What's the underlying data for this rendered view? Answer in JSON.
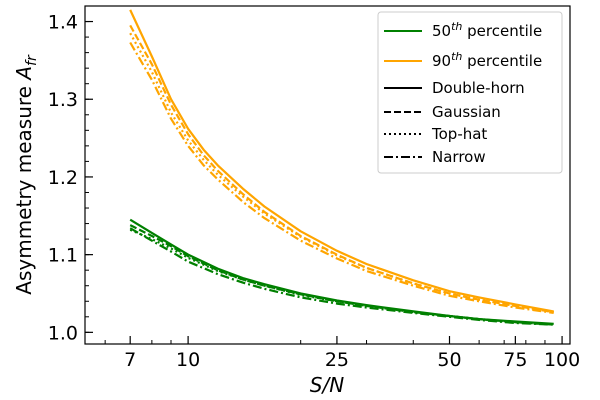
{
  "chart_data": {
    "type": "line",
    "xlabel": "S/N",
    "ylabel": "Asymmetry measure A_fr",
    "xscale": "log",
    "xlim": [
      5.3,
      105
    ],
    "ylim": [
      0.985,
      1.42
    ],
    "xticks": [
      {
        "value": 7,
        "label": "7"
      },
      {
        "value": 10,
        "label": "10"
      },
      {
        "value": 25,
        "label": "25"
      },
      {
        "value": 50,
        "label": "50"
      },
      {
        "value": 75,
        "label": "75"
      },
      {
        "value": 100,
        "label": "100"
      }
    ],
    "yticks": [
      {
        "value": 1.0,
        "label": "1.0"
      },
      {
        "value": 1.1,
        "label": "1.1"
      },
      {
        "value": 1.2,
        "label": "1.2"
      },
      {
        "value": 1.3,
        "label": "1.3"
      },
      {
        "value": 1.4,
        "label": "1.4"
      }
    ],
    "grid": false,
    "legend_position": "top-right",
    "legend": [
      {
        "label": "50th percentile",
        "base": "50",
        "sup": "th",
        "rest": " percentile",
        "kind": "color",
        "color": "#008000"
      },
      {
        "label": "90th percentile",
        "base": "90",
        "sup": "th",
        "rest": " percentile",
        "kind": "color",
        "color": "#ffa500"
      },
      {
        "label": "Double-horn",
        "kind": "style",
        "dash": "solid"
      },
      {
        "label": "Gaussian",
        "kind": "style",
        "dash": "dashed"
      },
      {
        "label": "Top-hat",
        "kind": "style",
        "dash": "dotted"
      },
      {
        "label": "Narrow",
        "kind": "style",
        "dash": "dashdot"
      }
    ],
    "series": [
      {
        "percentile": "90",
        "profile": "Double-horn",
        "color": "#ffa500",
        "dash": "solid",
        "x": [
          7,
          8,
          9,
          10,
          11,
          12,
          14,
          16,
          20,
          25,
          30,
          40,
          50,
          60,
          75,
          95
        ],
        "y": [
          1.415,
          1.355,
          1.3,
          1.262,
          1.235,
          1.215,
          1.185,
          1.162,
          1.13,
          1.105,
          1.088,
          1.067,
          1.053,
          1.045,
          1.036,
          1.027
        ]
      },
      {
        "percentile": "90",
        "profile": "Gaussian",
        "color": "#ffa500",
        "dash": "dashed",
        "x": [
          7,
          8,
          9,
          10,
          11,
          12,
          14,
          16,
          20,
          25,
          30,
          40,
          50,
          60,
          75,
          95
        ],
        "y": [
          1.395,
          1.345,
          1.293,
          1.255,
          1.228,
          1.208,
          1.178,
          1.155,
          1.124,
          1.1,
          1.083,
          1.063,
          1.05,
          1.042,
          1.034,
          1.026
        ]
      },
      {
        "percentile": "90",
        "profile": "Top-hat",
        "color": "#ffa500",
        "dash": "dotted",
        "x": [
          7,
          8,
          9,
          10,
          11,
          12,
          14,
          16,
          20,
          25,
          30,
          40,
          50,
          60,
          75,
          95
        ],
        "y": [
          1.385,
          1.335,
          1.283,
          1.247,
          1.222,
          1.203,
          1.175,
          1.153,
          1.123,
          1.099,
          1.083,
          1.063,
          1.05,
          1.042,
          1.034,
          1.026
        ]
      },
      {
        "percentile": "90",
        "profile": "Narrow",
        "color": "#ffa500",
        "dash": "dashdot",
        "x": [
          7,
          8,
          9,
          10,
          11,
          12,
          14,
          16,
          20,
          25,
          30,
          40,
          50,
          60,
          75,
          95
        ],
        "y": [
          1.373,
          1.325,
          1.275,
          1.24,
          1.215,
          1.197,
          1.168,
          1.147,
          1.118,
          1.095,
          1.079,
          1.06,
          1.047,
          1.04,
          1.032,
          1.025
        ]
      },
      {
        "percentile": "50",
        "profile": "Double-horn",
        "color": "#008000",
        "dash": "solid",
        "x": [
          7,
          8,
          9,
          10,
          12,
          14,
          16,
          20,
          25,
          30,
          40,
          50,
          60,
          75,
          95
        ],
        "y": [
          1.145,
          1.128,
          1.113,
          1.1,
          1.082,
          1.07,
          1.062,
          1.05,
          1.041,
          1.035,
          1.027,
          1.021,
          1.017,
          1.014,
          1.011
        ]
      },
      {
        "percentile": "50",
        "profile": "Gaussian",
        "color": "#008000",
        "dash": "dashed",
        "x": [
          7,
          8,
          9,
          10,
          12,
          14,
          16,
          20,
          25,
          30,
          40,
          50,
          60,
          75,
          95
        ],
        "y": [
          1.138,
          1.124,
          1.111,
          1.098,
          1.08,
          1.068,
          1.06,
          1.049,
          1.04,
          1.034,
          1.026,
          1.021,
          1.017,
          1.013,
          1.01
        ]
      },
      {
        "percentile": "50",
        "profile": "Top-hat",
        "color": "#008000",
        "dash": "dotted",
        "x": [
          7,
          8,
          9,
          10,
          12,
          14,
          16,
          20,
          25,
          30,
          40,
          50,
          60,
          75,
          95
        ],
        "y": [
          1.132,
          1.12,
          1.108,
          1.096,
          1.079,
          1.068,
          1.06,
          1.048,
          1.04,
          1.034,
          1.026,
          1.021,
          1.017,
          1.013,
          1.01
        ]
      },
      {
        "percentile": "50",
        "profile": "Narrow",
        "color": "#008000",
        "dash": "dashdot",
        "x": [
          7,
          8,
          9,
          10,
          12,
          14,
          16,
          20,
          25,
          30,
          40,
          50,
          60,
          75,
          95
        ],
        "y": [
          1.134,
          1.118,
          1.104,
          1.091,
          1.075,
          1.064,
          1.056,
          1.045,
          1.037,
          1.032,
          1.025,
          1.02,
          1.016,
          1.012,
          1.01
        ]
      }
    ]
  }
}
